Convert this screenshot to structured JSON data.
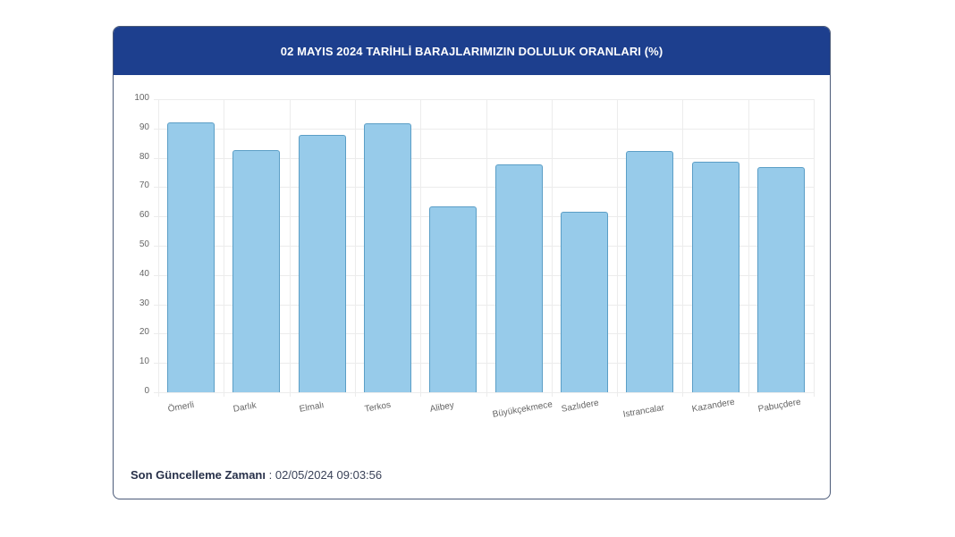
{
  "header": {
    "title": "02 MAYIS 2024 TARİHLİ BARAJLARIMIZIN DOLULUK ORANLARI (%)"
  },
  "footer": {
    "label": "Son Güncelleme Zamanı",
    "separator": " : ",
    "value": "02/05/2024 09:03:56"
  },
  "colors": {
    "header_bg": "#1d3f8e",
    "bar_fill": "#97cbea",
    "bar_border": "#5b9ec6"
  },
  "chart_data": {
    "type": "bar",
    "title": "02 MAYIS 2024 TARİHLİ BARAJLARIMIZIN DOLULUK ORANLARI (%)",
    "xlabel": "",
    "ylabel": "",
    "categories": [
      "Ömerli",
      "Darlık",
      "Elmalı",
      "Terkos",
      "Alibey",
      "Büyükçekmece",
      "Sazlıdere",
      "Istrancalar",
      "Kazandere",
      "Pabuçdere"
    ],
    "values": [
      92.1,
      82.6,
      87.8,
      91.8,
      63.4,
      77.6,
      61.7,
      82.2,
      78.7,
      76.7
    ],
    "ylim": [
      0,
      100
    ],
    "yticks": [
      0,
      10,
      20,
      30,
      40,
      50,
      60,
      70,
      80,
      90,
      100
    ],
    "grid": true,
    "legend": null
  }
}
